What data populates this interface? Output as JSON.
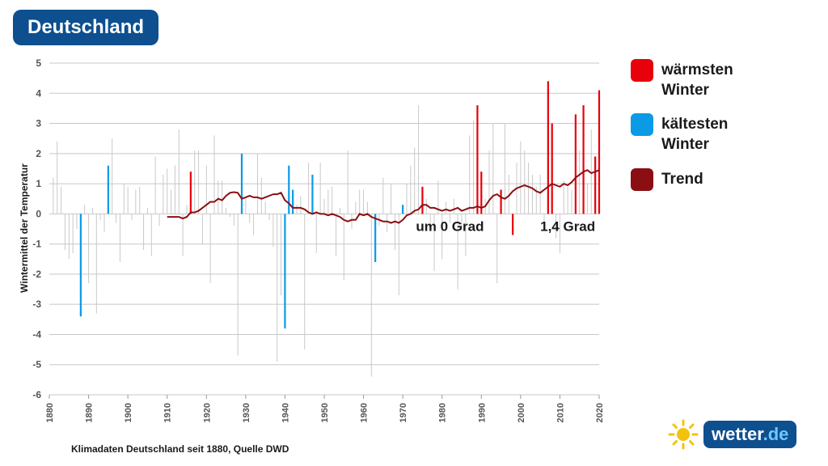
{
  "header": {
    "title": "Deutschland"
  },
  "legend": {
    "warm": {
      "label_line1": "wärmsten",
      "label_line2": "Winter",
      "color": "#e8000b"
    },
    "cold": {
      "label_line1": "kältesten",
      "label_line2": "Winter",
      "color": "#0a9ae6"
    },
    "trend": {
      "label": "Trend",
      "color": "#8b0f12"
    }
  },
  "source_text": "Klimadaten Deutschland seit 1880, Quelle DWD",
  "logo": {
    "text": "wetter",
    "suffix": ".de"
  },
  "chart_data": {
    "type": "bar",
    "ylabel": "Wintermittel der Temperatur",
    "xlim": [
      1880,
      2020
    ],
    "ylim": [
      -6,
      5
    ],
    "yticks": [
      5,
      4,
      3,
      2,
      1,
      0,
      -1,
      -2,
      -3,
      -4,
      -5,
      -6
    ],
    "xticks": [
      1880,
      1890,
      1900,
      1910,
      1920,
      1930,
      1940,
      1950,
      1960,
      1970,
      1980,
      1990,
      2000,
      2010,
      2020
    ],
    "grid": true,
    "annotations": [
      {
        "text": "um 0 Grad",
        "x": 1982,
        "y": -0.4
      },
      {
        "text": "1,4 Grad",
        "x": 2012,
        "y": -0.4
      }
    ],
    "series": [
      {
        "name": "Winter",
        "years": [
          1881,
          1882,
          1883,
          1884,
          1885,
          1886,
          1887,
          1888,
          1889,
          1890,
          1891,
          1892,
          1893,
          1894,
          1895,
          1896,
          1897,
          1898,
          1899,
          1900,
          1901,
          1902,
          1903,
          1904,
          1905,
          1906,
          1907,
          1908,
          1909,
          1910,
          1911,
          1912,
          1913,
          1914,
          1915,
          1916,
          1917,
          1918,
          1919,
          1920,
          1921,
          1922,
          1923,
          1924,
          1925,
          1926,
          1927,
          1928,
          1929,
          1930,
          1931,
          1932,
          1933,
          1934,
          1935,
          1936,
          1937,
          1938,
          1939,
          1940,
          1941,
          1942,
          1943,
          1944,
          1945,
          1946,
          1947,
          1948,
          1949,
          1950,
          1951,
          1952,
          1953,
          1954,
          1955,
          1956,
          1957,
          1958,
          1959,
          1960,
          1961,
          1962,
          1963,
          1964,
          1965,
          1966,
          1967,
          1968,
          1969,
          1970,
          1971,
          1972,
          1973,
          1974,
          1975,
          1976,
          1977,
          1978,
          1979,
          1980,
          1981,
          1982,
          1983,
          1984,
          1985,
          1986,
          1987,
          1988,
          1989,
          1990,
          1991,
          1992,
          1993,
          1994,
          1995,
          1996,
          1997,
          1998,
          1999,
          2000,
          2001,
          2002,
          2003,
          2004,
          2005,
          2006,
          2007,
          2008,
          2009,
          2010,
          2011,
          2012,
          2013,
          2014,
          2015,
          2016,
          2017,
          2018,
          2019,
          2020
        ],
        "values": [
          1.2,
          2.4,
          0.9,
          -1.2,
          -1.5,
          -1.3,
          -0.5,
          -3.4,
          0.3,
          -2.3,
          0.2,
          -3.3,
          -0.2,
          -0.6,
          1.6,
          2.5,
          -0.3,
          -1.6,
          1.0,
          0.9,
          -0.2,
          0.8,
          0.9,
          -1.2,
          0.2,
          -1.4,
          1.9,
          -0.4,
          1.3,
          1.5,
          0.8,
          1.6,
          2.8,
          -1.4,
          0.3,
          1.4,
          2.1,
          2.1,
          -1.0,
          1.6,
          -2.3,
          2.6,
          1.1,
          1.1,
          0.2,
          -0.1,
          -0.4,
          -4.7,
          2.0,
          0.5,
          -0.3,
          -0.7,
          2.0,
          1.2,
          0.4,
          -0.2,
          -1.1,
          -4.9,
          -2.7,
          -3.8,
          1.6,
          0.8,
          0.3,
          0.6,
          -4.5,
          1.7,
          1.3,
          -1.3,
          1.7,
          0.5,
          0.8,
          0.9,
          -1.4,
          0.2,
          -2.2,
          2.1,
          -0.5,
          0.4,
          0.8,
          0.8,
          0.4,
          -5.4,
          -1.6,
          -0.4,
          1.2,
          -0.6,
          1.0,
          -1.2,
          -2.7,
          0.3,
          1.0,
          1.6,
          2.2,
          3.6,
          0.9,
          0.5,
          -0.4,
          -1.9,
          1.1,
          -1.5,
          0.4,
          -0.3,
          0.5,
          -2.5,
          -0.5,
          -1.4,
          2.6,
          3.1,
          3.6,
          1.4,
          0.5,
          2.1,
          3.0,
          -2.3,
          0.8,
          3.0,
          1.3,
          -0.7,
          1.7,
          2.4,
          2.1,
          1.7,
          1.3,
          0.9,
          1.3,
          -0.5,
          4.4,
          3.0,
          -0.8,
          -1.3,
          1.1,
          0.9,
          0.8,
          3.3,
          2.1,
          3.6,
          1.0,
          2.8,
          1.9,
          4.1
        ],
        "warm_years": [
          1916,
          1975,
          1989,
          1990,
          1995,
          1998,
          2007,
          2008,
          2014,
          2016,
          2019,
          2020
        ],
        "cold_years": [
          1888,
          1895,
          1929,
          1940,
          1941,
          1942,
          1947,
          1963,
          1970
        ]
      },
      {
        "name": "Trend",
        "years": [
          1910,
          1911,
          1912,
          1913,
          1914,
          1915,
          1916,
          1917,
          1918,
          1919,
          1920,
          1921,
          1922,
          1923,
          1924,
          1925,
          1926,
          1927,
          1928,
          1929,
          1930,
          1931,
          1932,
          1933,
          1934,
          1935,
          1936,
          1937,
          1938,
          1939,
          1940,
          1941,
          1942,
          1943,
          1944,
          1945,
          1946,
          1947,
          1948,
          1949,
          1950,
          1951,
          1952,
          1953,
          1954,
          1955,
          1956,
          1957,
          1958,
          1959,
          1960,
          1961,
          1962,
          1963,
          1964,
          1965,
          1966,
          1967,
          1968,
          1969,
          1970,
          1971,
          1972,
          1973,
          1974,
          1975,
          1976,
          1977,
          1978,
          1979,
          1980,
          1981,
          1982,
          1983,
          1984,
          1985,
          1986,
          1987,
          1988,
          1989,
          1990,
          1991,
          1992,
          1993,
          1994,
          1995,
          1996,
          1997,
          1998,
          1999,
          2000,
          2001,
          2002,
          2003,
          2004,
          2005,
          2006,
          2007,
          2008,
          2009,
          2010,
          2011,
          2012,
          2013,
          2014,
          2015,
          2016,
          2017,
          2018,
          2019,
          2020
        ],
        "values": [
          -0.1,
          -0.1,
          -0.1,
          -0.1,
          -0.15,
          -0.1,
          0.05,
          0.05,
          0.1,
          0.2,
          0.3,
          0.4,
          0.4,
          0.5,
          0.45,
          0.6,
          0.7,
          0.72,
          0.7,
          0.5,
          0.55,
          0.6,
          0.55,
          0.55,
          0.5,
          0.55,
          0.6,
          0.65,
          0.65,
          0.7,
          0.45,
          0.35,
          0.2,
          0.2,
          0.2,
          0.15,
          0.05,
          0.0,
          0.05,
          0.0,
          0.0,
          -0.05,
          0.0,
          -0.05,
          -0.1,
          -0.2,
          -0.25,
          -0.2,
          -0.2,
          0.0,
          -0.05,
          0.0,
          -0.1,
          -0.15,
          -0.2,
          -0.25,
          -0.25,
          -0.3,
          -0.25,
          -0.3,
          -0.2,
          -0.05,
          0.0,
          0.1,
          0.15,
          0.3,
          0.3,
          0.2,
          0.2,
          0.15,
          0.1,
          0.15,
          0.1,
          0.15,
          0.2,
          0.1,
          0.15,
          0.2,
          0.2,
          0.25,
          0.2,
          0.25,
          0.45,
          0.6,
          0.65,
          0.55,
          0.5,
          0.6,
          0.75,
          0.85,
          0.9,
          0.95,
          0.9,
          0.85,
          0.75,
          0.7,
          0.8,
          0.9,
          1.0,
          0.95,
          0.9,
          1.0,
          0.95,
          1.05,
          1.2,
          1.3,
          1.4,
          1.45,
          1.35,
          1.4,
          1.45
        ]
      }
    ]
  }
}
